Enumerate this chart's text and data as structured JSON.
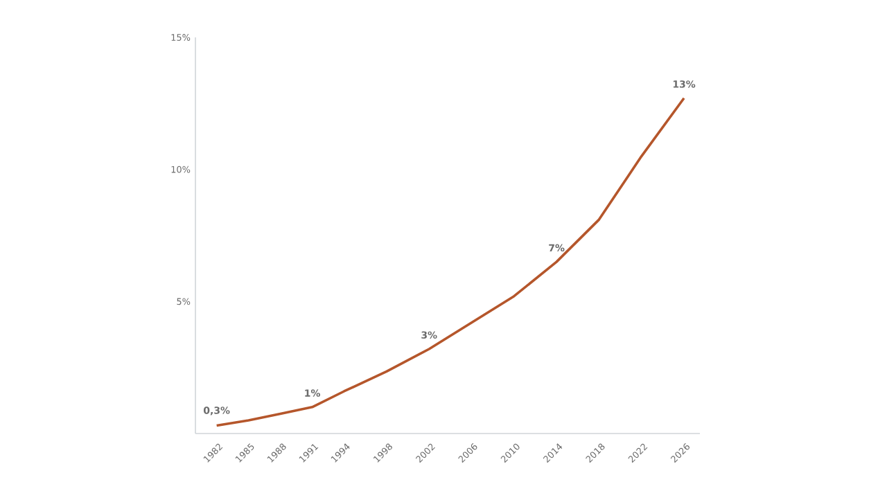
{
  "chart_data": {
    "type": "line",
    "x": [
      1982,
      1985,
      1988,
      1991,
      1994,
      1998,
      2002,
      2006,
      2010,
      2014,
      2018,
      2022,
      2026
    ],
    "series": [
      {
        "color": "#b5562b",
        "values": [
          0.3,
          0.5,
          0.75,
          1.0,
          1.6,
          2.35,
          3.2,
          4.2,
          5.2,
          6.5,
          8.1,
          10.5,
          12.7
        ],
        "value_labels": [
          "0,3%",
          null,
          null,
          "1%",
          null,
          null,
          "3%",
          null,
          null,
          "7%",
          null,
          null,
          "13%"
        ]
      }
    ],
    "xlim": [
      1980,
      2027.5
    ],
    "xticks": [
      1982,
      1985,
      1988,
      1991,
      1994,
      1998,
      2002,
      2006,
      2010,
      2014,
      2018,
      2022,
      2026
    ],
    "ylim": [
      0,
      15
    ],
    "yticks": [
      {
        "value": 5,
        "label": "5%"
      },
      {
        "value": 10,
        "label": "10%"
      },
      {
        "value": 15,
        "label": "15%"
      }
    ],
    "grid": false,
    "marker": "none",
    "line_style": "solid"
  }
}
